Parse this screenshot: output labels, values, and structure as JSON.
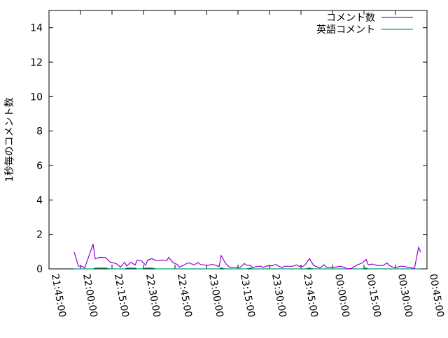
{
  "chart_data": {
    "type": "line",
    "title": "",
    "xlabel": "",
    "ylabel": "1秒毎のコメント数",
    "xlim": [
      "21:45:00",
      "00:45:00"
    ],
    "ylim": [
      0,
      15
    ],
    "grid": false,
    "legend_position": "top-right",
    "x_ticks": [
      "21:45:00",
      "22:00:00",
      "22:15:00",
      "22:30:00",
      "22:45:00",
      "23:00:00",
      "23:15:00",
      "23:30:00",
      "23:45:00",
      "00:00:00",
      "00:15:00",
      "00:30:00",
      "00:45:00"
    ],
    "y_ticks": [
      "0",
      "2",
      "4",
      "6",
      "8",
      "10",
      "12",
      "14"
    ],
    "x": [
      "21:57",
      "21:59",
      "22:01",
      "22:02",
      "22:06",
      "22:07",
      "22:09",
      "22:12",
      "22:14",
      "22:17",
      "22:19",
      "22:21",
      "22:22",
      "22:24",
      "22:26",
      "22:27",
      "22:29",
      "22:31",
      "22:32",
      "22:34",
      "22:36",
      "22:39",
      "22:41",
      "22:42",
      "22:44",
      "22:46",
      "22:47",
      "22:49",
      "22:51",
      "22:52",
      "22:54",
      "22:56",
      "22:57",
      "22:59",
      "23:01",
      "23:03",
      "23:06",
      "23:07",
      "23:09",
      "23:11",
      "23:16",
      "23:18",
      "23:19",
      "23:21",
      "23:22",
      "23:24",
      "23:26",
      "23:27",
      "23:29",
      "23:31",
      "23:33",
      "23:34",
      "23:36",
      "23:37",
      "23:41",
      "23:43",
      "23:44",
      "23:46",
      "23:47",
      "23:49",
      "23:51",
      "23:52",
      "23:54",
      "23:56",
      "23:57",
      "23:59",
      "00:01",
      "00:04",
      "00:06",
      "00:07",
      "00:09",
      "00:11",
      "00:12",
      "00:14",
      "00:16",
      "00:17",
      "00:19",
      "00:21",
      "00:24",
      "00:26",
      "00:27",
      "00:29",
      "00:31",
      "00:32",
      "00:34",
      "00:36",
      "00:37",
      "00:39",
      "00:41",
      "00:42"
    ],
    "series": [
      {
        "name": "コメント数",
        "color": "#9400d3",
        "values": [
          0.97,
          0.16,
          0.15,
          0.05,
          1.44,
          0.58,
          0.67,
          0.66,
          0.4,
          0.31,
          0.1,
          0.38,
          0.17,
          0.38,
          0.22,
          0.51,
          0.47,
          0.22,
          0.51,
          0.59,
          0.48,
          0.51,
          0.48,
          0.67,
          0.37,
          0.26,
          0.1,
          0.2,
          0.34,
          0.34,
          0.22,
          0.37,
          0.26,
          0.22,
          0.22,
          0.26,
          0.13,
          0.77,
          0.33,
          0.09,
          0.09,
          0.31,
          0.22,
          0.2,
          0.07,
          0.15,
          0.15,
          0.09,
          0.18,
          0.18,
          0.26,
          0.18,
          0.07,
          0.15,
          0.15,
          0.23,
          0.15,
          0.15,
          0.24,
          0.59,
          0.2,
          0.15,
          0.05,
          0.24,
          0.1,
          0.07,
          0.1,
          0.15,
          0.07,
          0.0,
          0.02,
          0.18,
          0.24,
          0.33,
          0.55,
          0.24,
          0.28,
          0.2,
          0.2,
          0.34,
          0.2,
          0.09,
          0.09,
          0.15,
          0.15,
          0.09,
          0.07,
          0.02,
          1.25,
          0.97
        ]
      },
      {
        "name": "英語コメント",
        "color": "#009e73",
        "values": [
          0,
          0,
          0,
          0,
          0,
          0.05,
          0.05,
          0.05,
          0,
          0,
          0,
          0,
          0.05,
          0.05,
          0.05,
          0,
          0,
          0.05,
          0.05,
          0.05,
          0,
          0,
          0,
          0,
          0,
          0,
          0,
          0,
          0,
          0,
          0,
          0,
          0,
          0,
          0,
          0,
          0,
          0.05,
          0,
          0,
          0,
          0,
          0,
          0.05,
          0,
          0,
          0,
          0,
          0,
          0,
          0,
          0,
          0,
          0,
          0,
          0,
          0,
          0,
          0,
          0.05,
          0,
          0,
          0,
          0,
          0,
          0,
          0,
          0,
          0,
          0,
          0,
          0,
          0,
          0,
          0.05,
          0,
          0,
          0,
          0,
          0,
          0,
          0,
          0,
          0,
          0,
          0,
          0,
          0,
          0,
          0
        ]
      }
    ]
  }
}
